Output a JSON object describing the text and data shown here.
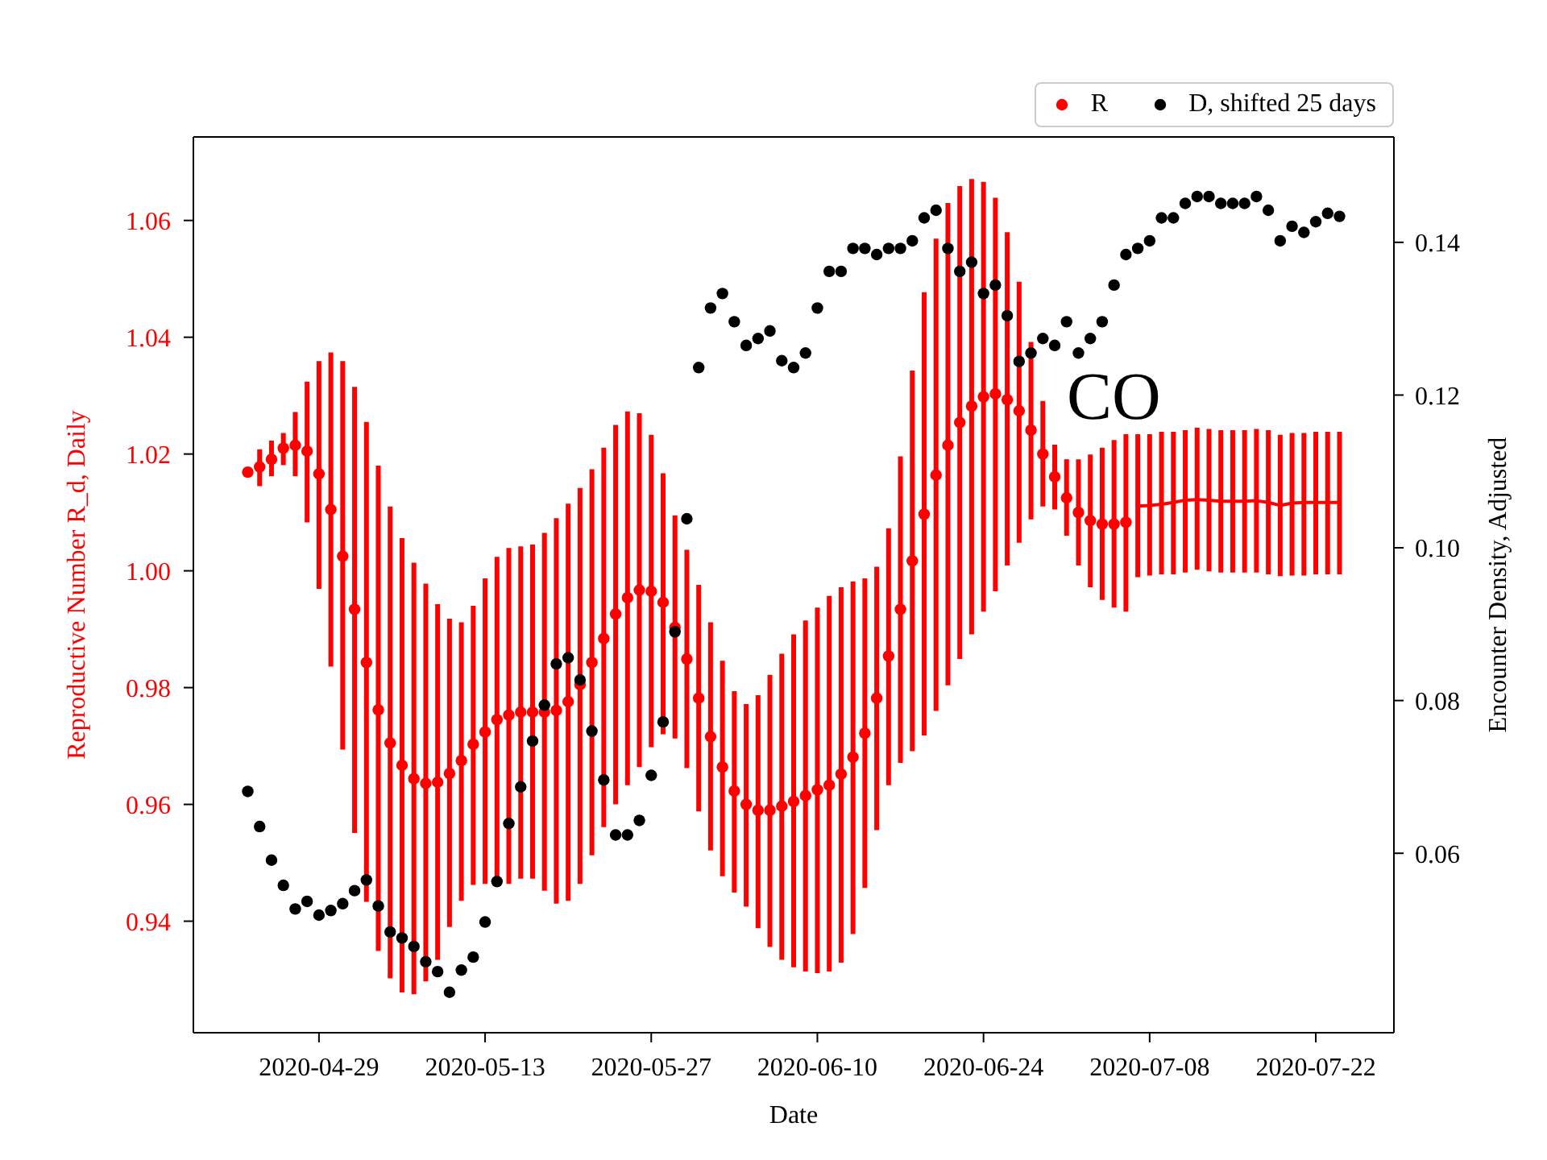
{
  "chart_data": {
    "type": "scatter",
    "xlabel": "Date",
    "ylabel": "Reproductive Number R_d, Daily",
    "y2label": "Encounter Density, Adjusted",
    "annotations": [
      "CO"
    ],
    "xlim": [
      "2020-04-18T10:00",
      "2020-07-28T14:00"
    ],
    "xticks": [
      "2020-04-29",
      "2020-05-13",
      "2020-05-27",
      "2020-06-10",
      "2020-06-24",
      "2020-07-08",
      "2020-07-22"
    ],
    "ylim": [
      0.9209,
      1.0743
    ],
    "yticks": [
      0.94,
      0.96,
      0.98,
      {
        "value": 1,
        "label": "1.00"
      },
      1.02,
      1.04,
      1.06
    ],
    "y2lim": [
      0.0365,
      0.1538
    ],
    "y2ticks": [
      0.06,
      0.08,
      {
        "value": 0.1,
        "label": "0.10"
      },
      0.12,
      0.14
    ],
    "legend": "top right",
    "marker": "circle",
    "series": [
      {
        "name": "R",
        "color": "#ff0000",
        "x": [
          "2020-04-23",
          "2020-04-24",
          "2020-04-25",
          "2020-04-26",
          "2020-04-27",
          "2020-04-28",
          "2020-04-29",
          "2020-04-30",
          "2020-05-01",
          "2020-05-02",
          "2020-05-03",
          "2020-05-04",
          "2020-05-05",
          "2020-05-06",
          "2020-05-07",
          "2020-05-08",
          "2020-05-09",
          "2020-05-10",
          "2020-05-11",
          "2020-05-12",
          "2020-05-13",
          "2020-05-14",
          "2020-05-15",
          "2020-05-16",
          "2020-05-17",
          "2020-05-18",
          "2020-05-19",
          "2020-05-20",
          "2020-05-21",
          "2020-05-22",
          "2020-05-23",
          "2020-05-24",
          "2020-05-25",
          "2020-05-26",
          "2020-05-27",
          "2020-05-28",
          "2020-05-29",
          "2020-05-30",
          "2020-05-31",
          "2020-06-01",
          "2020-06-02",
          "2020-06-03",
          "2020-06-04",
          "2020-06-05",
          "2020-06-06",
          "2020-06-07",
          "2020-06-08",
          "2020-06-09",
          "2020-06-10",
          "2020-06-11",
          "2020-06-12",
          "2020-06-13",
          "2020-06-14",
          "2020-06-15",
          "2020-06-16",
          "2020-06-17",
          "2020-06-18",
          "2020-06-19",
          "2020-06-20",
          "2020-06-21",
          "2020-06-22",
          "2020-06-23",
          "2020-06-24",
          "2020-06-25",
          "2020-06-26",
          "2020-06-27",
          "2020-06-28",
          "2020-06-29",
          "2020-06-30",
          "2020-07-01",
          "2020-07-02",
          "2020-07-03",
          "2020-07-04",
          "2020-07-05",
          "2020-07-06"
        ],
        "values": [
          1.0169,
          1.0178,
          1.0191,
          1.021,
          1.0215,
          1.0205,
          1.0166,
          1.0105,
          1.0025,
          0.9934,
          0.9843,
          0.9762,
          0.9705,
          0.9667,
          0.9644,
          0.9636,
          0.9638,
          0.9653,
          0.9675,
          0.9703,
          0.9724,
          0.9745,
          0.9753,
          0.9758,
          0.9758,
          0.9758,
          0.9761,
          0.9776,
          0.9805,
          0.9843,
          0.9884,
          0.9926,
          0.9954,
          0.9967,
          0.9965,
          0.9946,
          0.9903,
          0.9849,
          0.9782,
          0.9716,
          0.9664,
          0.9623,
          0.96,
          0.959,
          0.959,
          0.9597,
          0.9605,
          0.9615,
          0.9625,
          0.9633,
          0.9652,
          0.9681,
          0.9722,
          0.9782,
          0.9854,
          0.9934,
          1.0017,
          1.0097,
          1.0164,
          1.0215,
          1.0254,
          1.0282,
          1.0298,
          1.0303,
          1.0293,
          1.0274,
          1.0241,
          1.02,
          1.0161,
          1.0125,
          1.01,
          1.0086,
          1.008,
          1.008,
          1.0083
        ],
        "errors": [
          null,
          [
            1.0145,
            1.0208
          ],
          [
            1.0162,
            1.0223
          ],
          [
            1.0181,
            1.0236
          ],
          [
            1.0162,
            1.0272
          ],
          [
            1.0083,
            1.0324
          ],
          [
            0.9969,
            1.0359
          ],
          [
            0.9836,
            1.0374
          ],
          [
            0.9694,
            1.0359
          ],
          [
            0.9551,
            1.0315
          ],
          [
            0.9433,
            1.0255
          ],
          [
            0.9349,
            1.018
          ],
          [
            0.9302,
            1.011
          ],
          [
            0.9278,
            1.0056
          ],
          [
            0.9275,
            1.0014
          ],
          [
            0.9297,
            0.9978
          ],
          [
            0.9334,
            0.9943
          ],
          [
            0.939,
            0.9918
          ],
          [
            0.9435,
            0.9912
          ],
          [
            0.9462,
            0.994
          ],
          [
            0.9464,
            0.9987
          ],
          [
            0.9465,
            1.0024
          ],
          [
            0.9464,
            1.0039
          ],
          [
            0.9473,
            1.0042
          ],
          [
            0.9473,
            1.0045
          ],
          [
            0.9452,
            1.0065
          ],
          [
            0.943,
            1.009
          ],
          [
            0.9435,
            1.0115
          ],
          [
            0.9464,
            1.0142
          ],
          [
            0.9513,
            1.0174
          ],
          [
            0.9561,
            1.0211
          ],
          [
            0.96,
            1.025
          ],
          [
            0.9633,
            1.0273
          ],
          [
            0.9664,
            1.027
          ],
          [
            0.9698,
            1.0233
          ],
          [
            0.972,
            1.0167
          ],
          [
            0.9713,
            1.0095
          ],
          [
            0.9662,
            1.0036
          ],
          [
            0.9588,
            0.9976
          ],
          [
            0.9521,
            0.9912
          ],
          [
            0.9477,
            0.9846
          ],
          [
            0.9449,
            0.9794
          ],
          [
            0.9425,
            0.9772
          ],
          [
            0.9388,
            0.9787
          ],
          [
            0.9356,
            0.9822
          ],
          [
            0.9334,
            0.9858
          ],
          [
            0.9321,
            0.9891
          ],
          [
            0.9314,
            0.9915
          ],
          [
            0.9311,
            0.9937
          ],
          [
            0.9314,
            0.9957
          ],
          [
            0.9329,
            0.9972
          ],
          [
            0.9378,
            0.9982
          ],
          [
            0.9457,
            0.9987
          ],
          [
            0.9556,
            1.0007
          ],
          [
            0.9633,
            1.0073
          ],
          [
            0.9671,
            1.0196
          ],
          [
            0.9691,
            1.0343
          ],
          [
            0.9718,
            1.0477
          ],
          [
            0.976,
            1.0569
          ],
          [
            0.9804,
            1.063
          ],
          [
            0.9849,
            1.0659
          ],
          [
            0.9891,
            1.0671
          ],
          [
            0.993,
            1.0666
          ],
          [
            0.9965,
            1.0639
          ],
          [
            1.0009,
            1.058
          ],
          [
            1.0048,
            1.0495
          ],
          [
            1.0088,
            1.0392
          ],
          [
            1.011,
            1.0291
          ],
          [
            1.0105,
            1.0216
          ],
          [
            1.006,
            1.0191
          ],
          [
            1.0009,
            1.0191
          ],
          [
            0.9972,
            1.0199
          ],
          [
            0.995,
            1.0211
          ],
          [
            0.9937,
            1.0224
          ],
          [
            0.993,
            1.0234
          ]
        ]
      },
      {
        "type": "line",
        "marker": "none",
        "color": "#ff0000",
        "x": [
          "2020-07-07",
          "2020-07-08",
          "2020-07-09",
          "2020-07-10",
          "2020-07-11",
          "2020-07-12",
          "2020-07-13",
          "2020-07-14",
          "2020-07-15",
          "2020-07-16",
          "2020-07-17",
          "2020-07-18",
          "2020-07-19",
          "2020-07-20",
          "2020-07-21",
          "2020-07-22",
          "2020-07-23",
          "2020-07-24"
        ],
        "values": [
          1.0111,
          1.0112,
          1.0114,
          1.0117,
          1.0121,
          1.0122,
          1.0121,
          1.0119,
          1.0119,
          1.0119,
          1.012,
          1.0117,
          1.0112,
          1.0116,
          1.0117,
          1.0117,
          1.0117,
          1.0117
        ],
        "errors": [
          [
            0.9989,
            1.0234
          ],
          [
            0.9992,
            1.0234
          ],
          [
            0.9994,
            1.0238
          ],
          [
            0.9994,
            1.0238
          ],
          [
            0.9997,
            1.0241
          ],
          [
            1.0002,
            1.0245
          ],
          [
            0.9999,
            1.0243
          ],
          [
            0.9997,
            1.0241
          ],
          [
            0.9997,
            1.0241
          ],
          [
            0.9997,
            1.0241
          ],
          [
            0.9997,
            1.0243
          ],
          [
            0.9994,
            1.0241
          ],
          [
            0.9991,
            1.0233
          ],
          [
            0.9992,
            1.0236
          ],
          [
            0.9992,
            1.0236
          ],
          [
            0.9994,
            1.0238
          ],
          [
            0.9994,
            1.0238
          ],
          [
            0.9994,
            1.0238
          ]
        ]
      },
      {
        "name": "D, shifted 25 days",
        "color": "#000000",
        "axis": "y2",
        "x": [
          "2020-04-23",
          "2020-04-24",
          "2020-04-25",
          "2020-04-26",
          "2020-04-27",
          "2020-04-28",
          "2020-04-29",
          "2020-04-30",
          "2020-05-01",
          "2020-05-02",
          "2020-05-03",
          "2020-05-04",
          "2020-05-05",
          "2020-05-06",
          "2020-05-07",
          "2020-05-08",
          "2020-05-09",
          "2020-05-10",
          "2020-05-11",
          "2020-05-12",
          "2020-05-13",
          "2020-05-14",
          "2020-05-15",
          "2020-05-16",
          "2020-05-17",
          "2020-05-18",
          "2020-05-19",
          "2020-05-20",
          "2020-05-21",
          "2020-05-22",
          "2020-05-23",
          "2020-05-24",
          "2020-05-25",
          "2020-05-26",
          "2020-05-27",
          "2020-05-28",
          "2020-05-29",
          "2020-05-30",
          "2020-05-31",
          "2020-06-01",
          "2020-06-02",
          "2020-06-03",
          "2020-06-04",
          "2020-06-05",
          "2020-06-06",
          "2020-06-07",
          "2020-06-08",
          "2020-06-09",
          "2020-06-10",
          "2020-06-11",
          "2020-06-12",
          "2020-06-13",
          "2020-06-14",
          "2020-06-15",
          "2020-06-16",
          "2020-06-17",
          "2020-06-18",
          "2020-06-19",
          "2020-06-20",
          "2020-06-21",
          "2020-06-22",
          "2020-06-23",
          "2020-06-24",
          "2020-06-25",
          "2020-06-26",
          "2020-06-27",
          "2020-06-28",
          "2020-06-29",
          "2020-06-30",
          "2020-07-01",
          "2020-07-02",
          "2020-07-03",
          "2020-07-04",
          "2020-07-05",
          "2020-07-06",
          "2020-07-07",
          "2020-07-08",
          "2020-07-09",
          "2020-07-10",
          "2020-07-11",
          "2020-07-12",
          "2020-07-13",
          "2020-07-14",
          "2020-07-15",
          "2020-07-16",
          "2020-07-17",
          "2020-07-18",
          "2020-07-19",
          "2020-07-20",
          "2020-07-21",
          "2020-07-22",
          "2020-07-23",
          "2020-07-24"
        ],
        "values": [
          0.0681,
          0.0635,
          0.0591,
          0.0558,
          0.0527,
          0.0537,
          0.0519,
          0.0525,
          0.0534,
          0.0551,
          0.0565,
          0.0531,
          0.0497,
          0.0489,
          0.0478,
          0.0458,
          0.0445,
          0.0418,
          0.0447,
          0.0464,
          0.051,
          0.0563,
          0.0639,
          0.0687,
          0.0747,
          0.0794,
          0.0848,
          0.0856,
          0.0827,
          0.076,
          0.0696,
          0.0624,
          0.0624,
          0.0643,
          0.0702,
          0.0772,
          0.089,
          0.1038,
          0.1236,
          0.1314,
          0.1333,
          0.1296,
          0.1265,
          0.1274,
          0.1284,
          0.1245,
          0.1236,
          0.1255,
          0.1314,
          0.1362,
          0.1362,
          0.1392,
          0.1392,
          0.1384,
          0.1392,
          0.1392,
          0.1402,
          0.1432,
          0.1442,
          0.1392,
          0.1362,
          0.1374,
          0.1333,
          0.1344,
          0.1304,
          0.1244,
          0.1255,
          0.1274,
          0.1265,
          0.1296,
          0.1255,
          0.1274,
          0.1296,
          0.1344,
          0.1384,
          0.1392,
          0.1402,
          0.1432,
          0.1432,
          0.1451,
          0.146,
          0.146,
          0.1451,
          0.1451,
          0.1451,
          0.146,
          0.1442,
          0.1402,
          0.1421,
          0.1413,
          0.1427,
          0.1438,
          0.1434
        ]
      }
    ]
  }
}
